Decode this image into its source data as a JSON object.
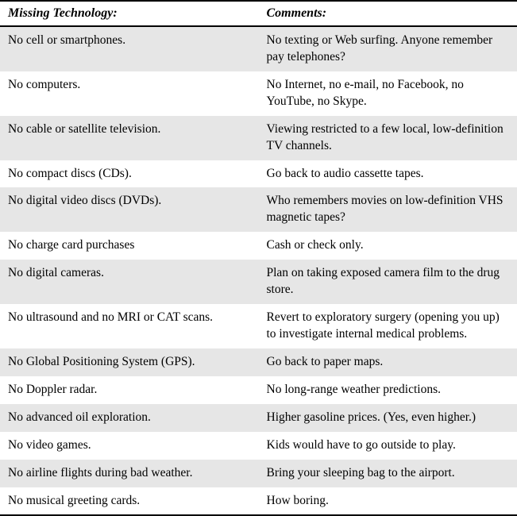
{
  "table": {
    "type": "table",
    "columns": [
      {
        "label": "Missing Technology:",
        "width": "50%"
      },
      {
        "label": "Comments:",
        "width": "50%"
      }
    ],
    "header_style": {
      "font_style": "italic",
      "font_weight": "bold",
      "font_size_pt": 12,
      "border_top": "2px solid #000",
      "border_bottom": "2px solid #000",
      "background": "#ffffff",
      "text_color": "#000000"
    },
    "body_style": {
      "font_size_pt": 11.5,
      "shaded_background": "#e6e6e6",
      "plain_background": "#ffffff",
      "text_color": "#000000",
      "line_height": 1.35
    },
    "rows": [
      {
        "shaded": true,
        "tech": "No cell or smartphones.",
        "comment": "No texting or Web surfing. Anyone remember pay telephones?"
      },
      {
        "shaded": false,
        "tech": "No computers.",
        "comment": "No Internet, no e-mail, no Facebook, no YouTube, no Skype."
      },
      {
        "shaded": true,
        "tech": "No cable or satellite television.",
        "comment": "Viewing restricted to a few local, low-definition TV channels."
      },
      {
        "shaded": false,
        "tech": "No compact discs (CDs).",
        "comment": "Go back to audio cassette tapes."
      },
      {
        "shaded": true,
        "tech": "No digital video discs (DVDs).",
        "comment": "Who remembers movies on low-definition VHS magnetic tapes?"
      },
      {
        "shaded": false,
        "tech": "No charge card purchases",
        "comment": "Cash or check only."
      },
      {
        "shaded": true,
        "tech": "No digital cameras.",
        "comment": "Plan on taking exposed camera film to the drug store."
      },
      {
        "shaded": false,
        "tech": "No ultrasound and no MRI or CAT scans.",
        "comment": "Revert to exploratory surgery (opening you up) to investigate internal medical problems."
      },
      {
        "shaded": true,
        "tech": "No Global Positioning System (GPS).",
        "comment": "Go back to paper maps."
      },
      {
        "shaded": false,
        "tech": "No Doppler radar.",
        "comment": "No long-range weather predictions."
      },
      {
        "shaded": true,
        "tech": "No advanced oil exploration.",
        "comment": "Higher gasoline prices. (Yes, even higher.)"
      },
      {
        "shaded": false,
        "tech": "No video games.",
        "comment": "Kids would have to go outside to play."
      },
      {
        "shaded": true,
        "tech": "No airline flights during bad weather.",
        "comment": "Bring your sleeping bag to the airport."
      },
      {
        "shaded": false,
        "tech": "No musical greeting cards.",
        "comment": "How boring."
      }
    ]
  }
}
